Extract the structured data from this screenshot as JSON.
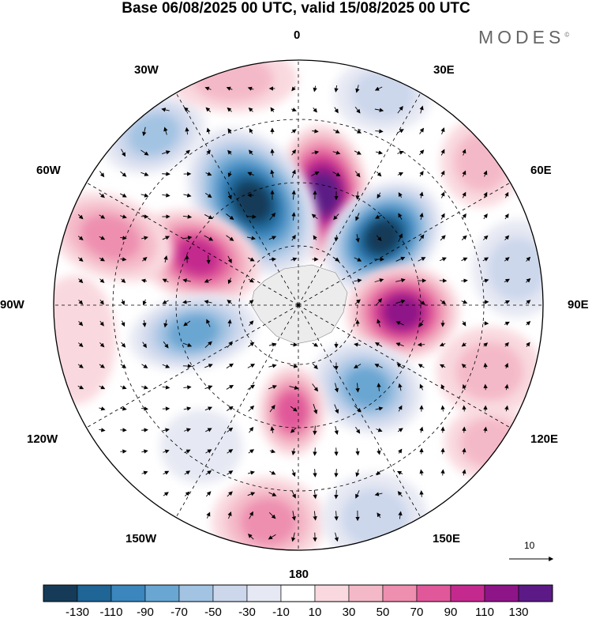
{
  "header": {
    "title": "Base 06/08/2025 00 UTC, valid 15/08/2025 00 UTC",
    "brand": "MODES",
    "brand_mark": "©"
  },
  "map": {
    "projection": "south-polar-stereographic",
    "field": "anomaly-shading-with-wind-vectors",
    "longitude_labels": {
      "lon_0": "0",
      "lon_30e": "30E",
      "lon_60e": "60E",
      "lon_90e": "90E",
      "lon_120e": "120E",
      "lon_150e": "150E",
      "lon_180": "180",
      "lon_150w": "150W",
      "lon_120w": "120W",
      "lon_90w": "90W",
      "lon_60w": "60W",
      "lon_30w": "30W"
    },
    "reference_vector_value": "10"
  },
  "colorbar": {
    "colors": [
      "#163b58",
      "#1f6595",
      "#3a86bd",
      "#6aa6d2",
      "#a2c3e2",
      "#ccd7ec",
      "#e6e8f3",
      "#ffffff",
      "#f9d9df",
      "#f4b9c8",
      "#ee8fb0",
      "#e1589a",
      "#c42a8e",
      "#8e1588",
      "#5c1a86"
    ],
    "ticks": [
      "-130",
      "-110",
      "-90",
      "-70",
      "-50",
      "-30",
      "-10",
      "10",
      "30",
      "50",
      "70",
      "90",
      "110",
      "130"
    ]
  }
}
